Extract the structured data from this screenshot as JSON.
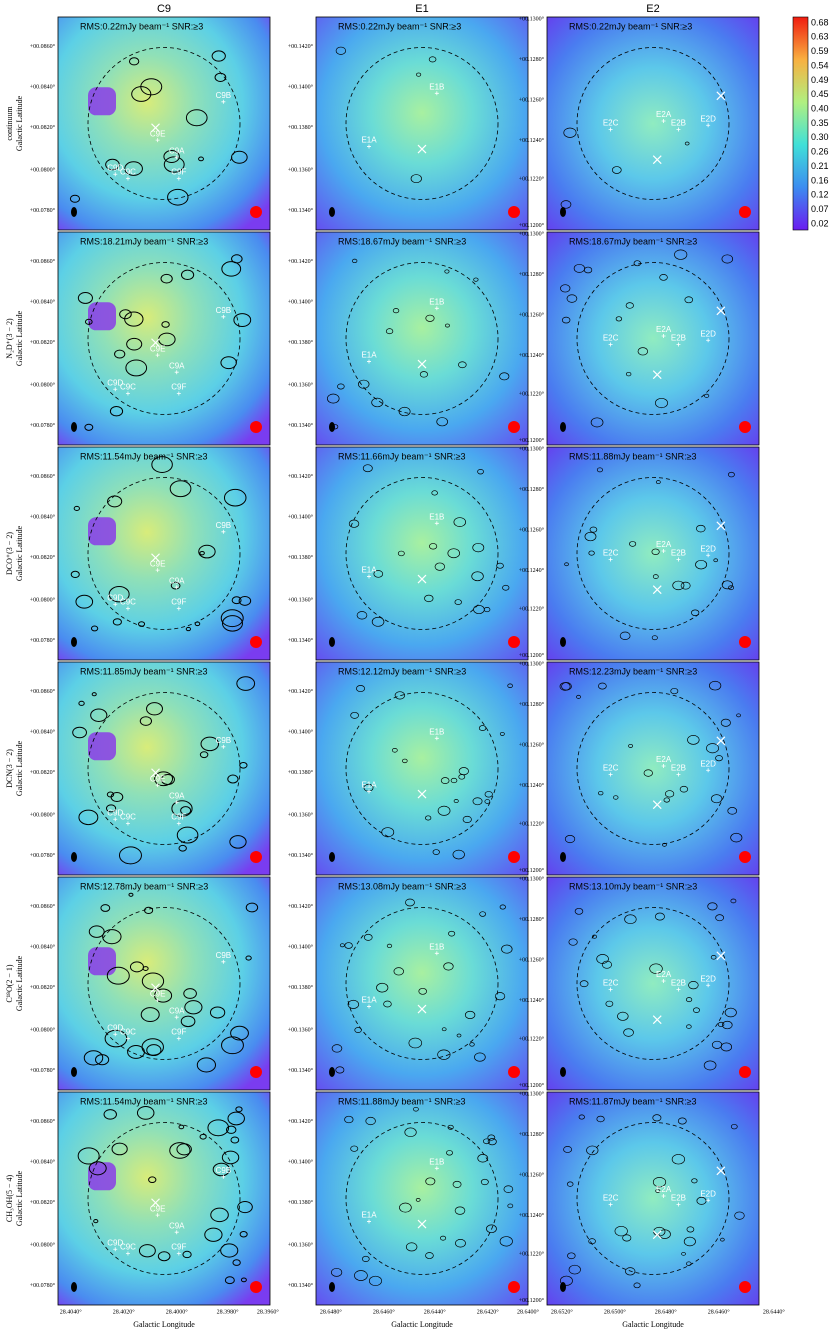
{
  "columns": [
    {
      "title": "C9",
      "yticks": [
        "+00.0860°",
        "+00.0840°",
        "+00.0820°",
        "+00.0800°",
        "+00.0780°"
      ],
      "xticks": [
        "28.4040°",
        "28.4020°",
        "28.4000°",
        "28.3980°",
        "28.3960°"
      ],
      "sources": [
        "C9B",
        "C9A",
        "C9E",
        "C9D",
        "C9C",
        "C9F"
      ]
    },
    {
      "title": "E1",
      "yticks": [
        "+00.1420°",
        "+00.1400°",
        "+00.1380°",
        "+00.1360°",
        "+00.1340°"
      ],
      "xticks": [
        "28.6480°",
        "28.6460°",
        "28.6440°",
        "28.6420°",
        "28.6400°"
      ],
      "sources": [
        "E1B",
        "E1A"
      ]
    },
    {
      "title": "E2",
      "yticks": [
        "+00.1300°",
        "+00.1280°",
        "+00.1260°",
        "+00.1240°",
        "+00.1220°",
        "+00.1200°"
      ],
      "xticks": [
        "28.6520°",
        "28.6500°",
        "28.6480°",
        "28.6460°",
        "28.6440°"
      ],
      "sources": [
        "E2C",
        "E2A",
        "E2B",
        "E2D"
      ]
    }
  ],
  "rows": [
    {
      "label": "continuum",
      "axis_label": "Galactic Latitude",
      "rms": [
        "RMS:0.22mJy beam⁻¹ SNR:≥3",
        "RMS:0.22mJy beam⁻¹ SNR:≥3",
        "RMS:0.22mJy beam⁻¹ SNR:≥3"
      ]
    },
    {
      "label": "N₂D⁺(3 − 2)",
      "axis_label": "Galactic Latitude",
      "rms": [
        "RMS:18.21mJy beam⁻¹ SNR:≥3",
        "RMS:18.67mJy beam⁻¹ SNR:≥3",
        "RMS:18.67mJy beam⁻¹ SNR:≥3"
      ]
    },
    {
      "label": "DCO⁺(3 − 2)",
      "axis_label": "Galactic Latitude",
      "rms": [
        "RMS:11.54mJy beam⁻¹ SNR:≥3",
        "RMS:11.66mJy beam⁻¹ SNR:≥3",
        "RMS:11.88mJy beam⁻¹ SNR:≥3"
      ]
    },
    {
      "label": "DCN(3 − 2)",
      "axis_label": "Galactic Latitude",
      "rms": [
        "RMS:11.85mJy beam⁻¹ SNR:≥3",
        "RMS:12.12mJy beam⁻¹ SNR:≥3",
        "RMS:12.23mJy beam⁻¹ SNR:≥3"
      ]
    },
    {
      "label": "C¹⁸O(2 − 1)",
      "axis_label": "Galactic Latitude",
      "rms": [
        "RMS:12.78mJy beam⁻¹ SNR:≥3",
        "RMS:13.08mJy beam⁻¹ SNR:≥3",
        "RMS:13.10mJy beam⁻¹ SNR:≥3"
      ]
    },
    {
      "label": "CH₃OH(5 − 4)",
      "axis_label": "Galactic Latitude",
      "rms": [
        "RMS:11.54mJy beam⁻¹ SNR:≥3",
        "RMS:11.88mJy beam⁻¹ SNR:≥3",
        "RMS:11.87mJy beam⁻¹ SNR:≥3"
      ]
    }
  ],
  "x_label": "Galactic Longitude",
  "colorbar": [
    "0.68",
    "0.63",
    "0.59",
    "0.54",
    "0.49",
    "0.45",
    "0.40",
    "0.35",
    "0.30",
    "0.26",
    "0.21",
    "0.16",
    "0.12",
    "0.07",
    "0.02"
  ]
}
